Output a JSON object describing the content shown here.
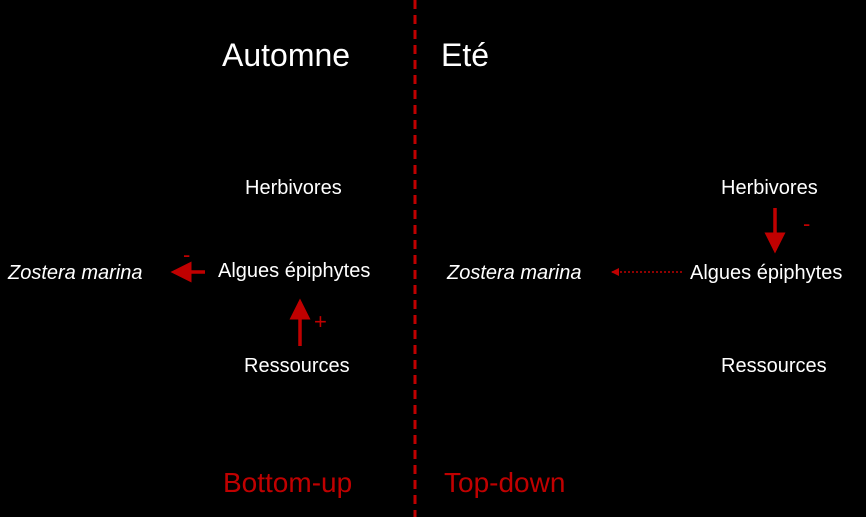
{
  "columns": {
    "left": {
      "title": "Automne",
      "mode": "Bottom-up",
      "nodes": {
        "top": "Herbivores",
        "middle": "Algues épiphytes",
        "bottom": "Ressources",
        "side": "Zostera marina"
      },
      "signs": {
        "middle_to_side": "-",
        "bottom_to_middle": "+"
      }
    },
    "right": {
      "title": "Eté",
      "mode": "Top-down",
      "nodes": {
        "top": "Herbivores",
        "middle": "Algues épiphytes",
        "bottom": "Ressources",
        "side": "Zostera marina"
      },
      "signs": {
        "top_to_middle": "-"
      }
    }
  },
  "colors": {
    "background": "#000000",
    "text": "#ffffff",
    "accent": "#c00000"
  }
}
